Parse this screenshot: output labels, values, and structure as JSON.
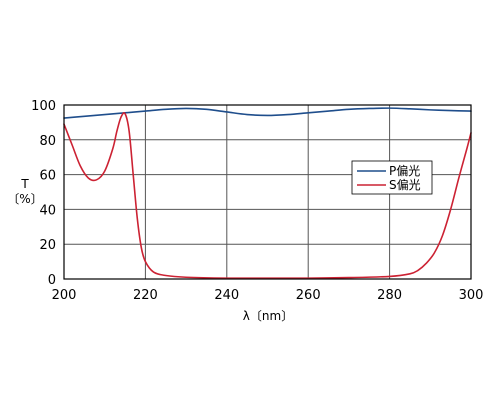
{
  "chart_data": {
    "type": "line",
    "xlabel": "λ〔nm〕",
    "ylabel_top": "T",
    "ylabel_bottom": "〔%〕",
    "xlim": [
      200,
      300
    ],
    "ylim": [
      0,
      100
    ],
    "x_ticks": [
      200,
      220,
      240,
      260,
      280,
      300
    ],
    "y_ticks": [
      0,
      20,
      40,
      60,
      80,
      100
    ],
    "grid": true,
    "legend_position": "right",
    "series": [
      {
        "name": "P偏光",
        "color": "#1f4e8c",
        "x": [
          200,
          205,
          210,
          215,
          220,
          225,
          230,
          235,
          240,
          245,
          250,
          255,
          260,
          265,
          270,
          275,
          280,
          285,
          290,
          295,
          300
        ],
        "y": [
          92.5,
          93.5,
          94.5,
          95.5,
          96.5,
          97.5,
          98,
          97.5,
          96,
          94.5,
          94,
          94.5,
          95.5,
          96.5,
          97.5,
          98,
          98.2,
          97.8,
          97.2,
          96.8,
          96.5
        ]
      },
      {
        "name": "S偏光",
        "color": "#cc2233",
        "x": [
          200,
          202,
          204,
          206,
          208,
          210,
          212,
          213,
          214,
          215,
          216,
          217,
          218,
          219,
          220,
          222,
          225,
          230,
          240,
          250,
          260,
          270,
          280,
          285,
          287,
          289,
          291,
          293,
          295,
          297,
          299,
          300
        ],
        "y": [
          89,
          77,
          65,
          58,
          57,
          62,
          75,
          85,
          93,
          95,
          85,
          60,
          35,
          18,
          10,
          4,
          2,
          1,
          0.5,
          0.5,
          0.5,
          0.8,
          1.5,
          3,
          5,
          9,
          15,
          25,
          40,
          58,
          75,
          84
        ]
      }
    ]
  }
}
